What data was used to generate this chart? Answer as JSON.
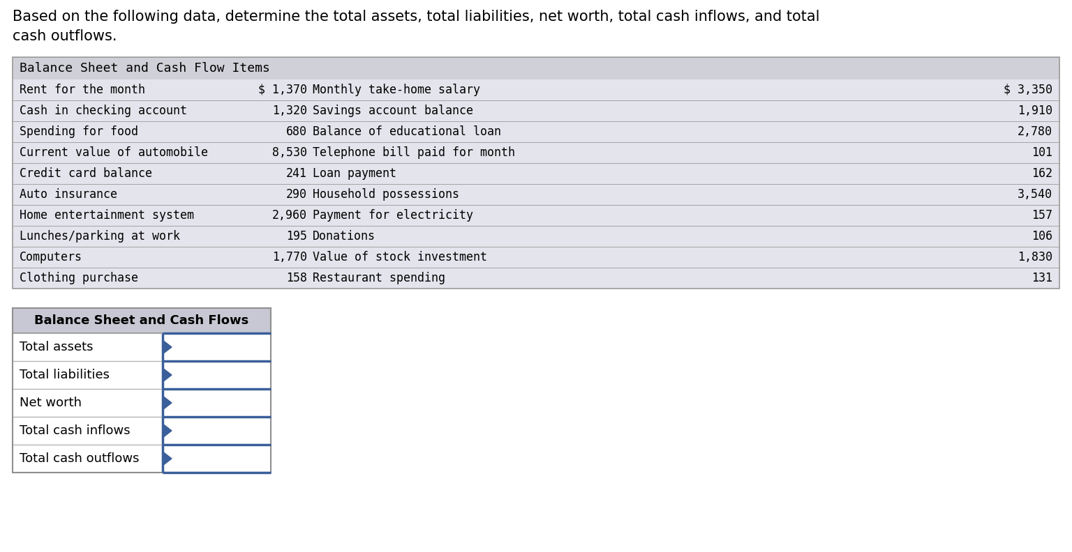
{
  "title_line1": "Based on the following data, determine the total assets, total liabilities, net worth, total cash inflows, and total",
  "title_line2": "cash outflows.",
  "top_table_header": "Balance Sheet and Cash Flow Items",
  "top_table_header_bg": "#d0d0d8",
  "top_table_bg": "#e4e4ec",
  "top_table_border": "#999999",
  "top_rows": [
    [
      "Rent for the month",
      "$ 1,370",
      "Monthly take-home salary",
      "$ 3,350"
    ],
    [
      "Cash in checking account",
      "1,320",
      "Savings account balance",
      "1,910"
    ],
    [
      "Spending for food",
      "680",
      "Balance of educational loan",
      "2,780"
    ],
    [
      "Current value of automobile",
      "8,530",
      "Telephone bill paid for month",
      "101"
    ],
    [
      "Credit card balance",
      "241",
      "Loan payment",
      "162"
    ],
    [
      "Auto insurance",
      "290",
      "Household possessions",
      "3,540"
    ],
    [
      "Home entertainment system",
      "2,960",
      "Payment for electricity",
      "157"
    ],
    [
      "Lunches/parking at work",
      "195",
      "Donations",
      "106"
    ],
    [
      "Computers",
      "1,770",
      "Value of stock investment",
      "1,830"
    ],
    [
      "Clothing purchase",
      "158",
      "Restaurant spending",
      "131"
    ]
  ],
  "bottom_table_header": "Balance Sheet and Cash Flows",
  "bottom_table_header_bg": "#c8c8d4",
  "bottom_table_border_dark": "#3a5f9a",
  "bottom_rows": [
    "Total assets",
    "Total liabilities",
    "Net worth",
    "Total cash inflows",
    "Total cash outflows"
  ],
  "arrow_color": "#3a5f9a",
  "bg_color": "#ffffff",
  "text_color": "#000000",
  "monospace_font": "DejaVu Sans Mono",
  "sans_font": "DejaVu Sans"
}
